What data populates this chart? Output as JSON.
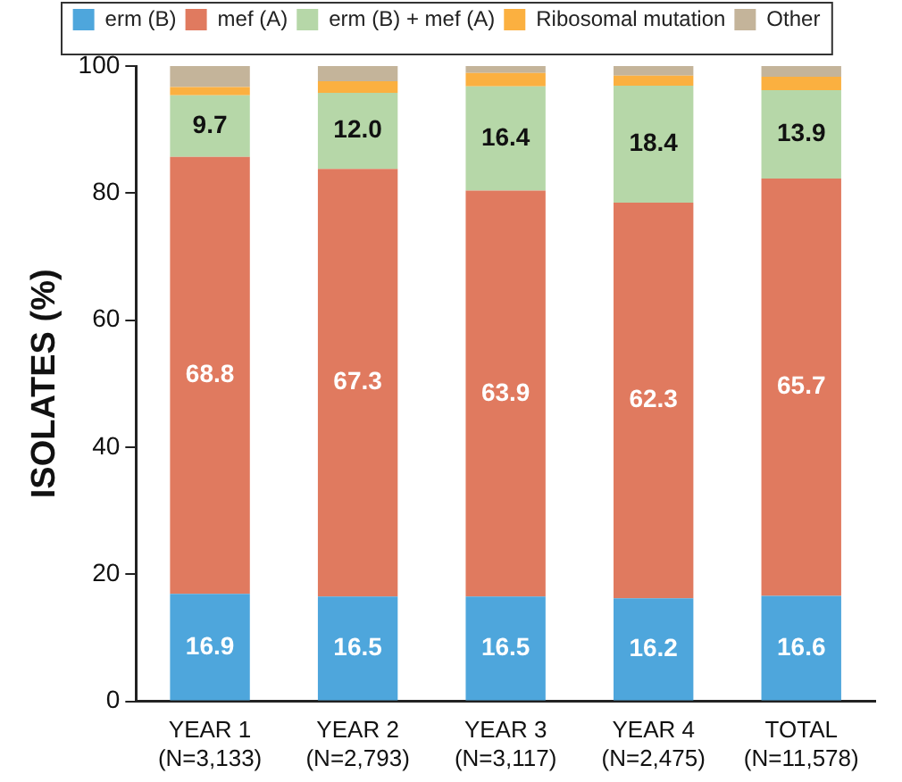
{
  "chart_data": {
    "type": "bar",
    "stacked": true,
    "ylabel": "ISOLATES (%)",
    "categories": [
      "YEAR 1\n(N=3,133)",
      "YEAR 2\n(N=2,793)",
      "YEAR 3\n(N=3,117)",
      "YEAR 4\n(N=2,475)",
      "TOTAL\n(N=11,578)"
    ],
    "series": [
      {
        "name": "erm (B)",
        "color": "#4ea6dc",
        "values": [
          16.9,
          16.5,
          16.5,
          16.2,
          16.6
        ],
        "value_labels": [
          "16.9",
          "16.5",
          "16.5",
          "16.2",
          "16.6"
        ]
      },
      {
        "name": "mef (A)",
        "color": "#e07a5f",
        "values": [
          68.8,
          67.3,
          63.9,
          62.3,
          65.7
        ],
        "value_labels": [
          "68.8",
          "67.3",
          "63.9",
          "62.3",
          "65.7"
        ]
      },
      {
        "name": "erm (B) + mef (A)",
        "color": "#b6d7a8",
        "values": [
          9.7,
          12.0,
          16.4,
          18.4,
          13.9
        ],
        "value_labels": [
          "9.7",
          "12.0",
          "16.4",
          "18.4",
          "13.9"
        ]
      },
      {
        "name": "Ribosomal mutation",
        "color": "#fbb040",
        "values": [
          1.3,
          1.8,
          2.1,
          1.6,
          2.1
        ]
      },
      {
        "name": "Other",
        "color": "#c4b49a",
        "values": [
          3.3,
          2.4,
          1.1,
          1.5,
          1.7
        ]
      }
    ],
    "ylim": [
      0,
      100
    ],
    "yticks": [
      0,
      20,
      40,
      60,
      80,
      100
    ],
    "grid": false,
    "legend": "top"
  }
}
